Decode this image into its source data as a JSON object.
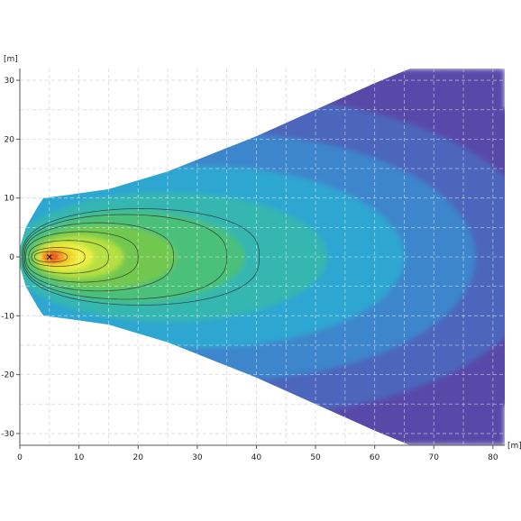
{
  "chart_data": {
    "type": "heatmap",
    "title": "",
    "x_unit": "[m]",
    "y_unit": "[m]",
    "xlim": [
      0,
      82
    ],
    "ylim": [
      -32,
      32
    ],
    "x_ticks": [
      0,
      10,
      20,
      30,
      40,
      50,
      60,
      70,
      80
    ],
    "y_ticks": [
      -30,
      -20,
      -10,
      0,
      10,
      20,
      30
    ],
    "grid": true,
    "peak": [
      5,
      0
    ],
    "beam_envelope": {
      "x": [
        0,
        1,
        3,
        4,
        8,
        15,
        25,
        40,
        60,
        66,
        82
      ],
      "half_width": [
        1.5,
        5,
        8.5,
        10,
        10.5,
        11.5,
        14.5,
        20.5,
        29.5,
        32,
        32
      ]
    },
    "contour_lines": [
      {
        "x_start": 2.5,
        "x_end": 8,
        "half_width": 0.9
      },
      {
        "x_start": 2,
        "x_end": 11,
        "half_width": 1.6
      },
      {
        "x_start": 1.5,
        "x_end": 15,
        "half_width": 2.8
      },
      {
        "x_start": 1,
        "x_end": 20,
        "half_width": 4.3
      },
      {
        "x_start": 0.8,
        "x_end": 26,
        "half_width": 5.8
      },
      {
        "x_start": 0.6,
        "x_end": 35,
        "half_width": 7.2
      },
      {
        "x_start": 0.4,
        "x_end": 40.5,
        "half_width": 8.2
      }
    ],
    "colormap": [
      "#e01010",
      "#f07020",
      "#f6c820",
      "#eef040",
      "#b6e040",
      "#72c850",
      "#4cc07a",
      "#34b6b0",
      "#2fa6d2",
      "#3c86cc",
      "#4c66bb",
      "#5948a8"
    ]
  }
}
